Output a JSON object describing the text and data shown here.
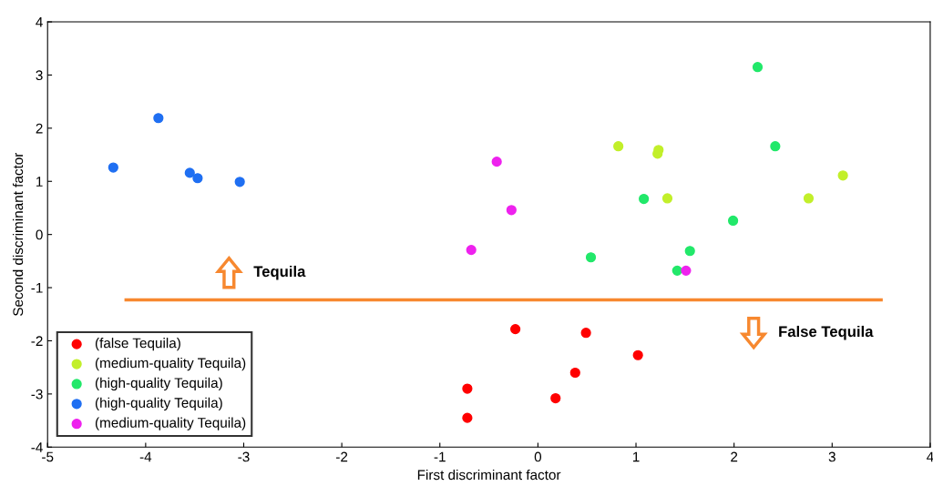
{
  "chart_data": {
    "type": "scatter",
    "xlabel": "First discriminant factor",
    "ylabel": "Second discriminant factor",
    "xlim": [
      -5,
      4
    ],
    "ylim": [
      -4,
      4
    ],
    "xticks": [
      -5,
      -4,
      -3,
      -2,
      -1,
      0,
      1,
      2,
      3,
      4
    ],
    "yticks": [
      -4,
      -3,
      -2,
      -1,
      0,
      1,
      2,
      3,
      4
    ],
    "grid": false,
    "legend": "bottom left",
    "marker": "circle",
    "series": [
      {
        "name": "(false Tequila)",
        "color": "#ff0000",
        "x": [
          -0.23,
          0.49,
          1.02,
          0.38,
          0.18,
          -0.72,
          -0.72
        ],
        "values": [
          -1.78,
          -1.85,
          -2.27,
          -2.6,
          -3.08,
          -2.9,
          -3.45
        ]
      },
      {
        "name": "(medium-quality Tequila)",
        "color": "#c2ef2a",
        "x": [
          0.82,
          1.23,
          1.22,
          1.32,
          2.76,
          3.11
        ],
        "values": [
          1.66,
          1.59,
          1.52,
          0.68,
          0.68,
          1.11
        ]
      },
      {
        "name": "(high-quality Tequila)",
        "color": "#22e86a",
        "x": [
          2.24,
          2.42,
          1.08,
          1.99,
          1.55,
          0.54,
          1.42
        ],
        "values": [
          3.15,
          1.66,
          0.67,
          0.26,
          -0.31,
          -0.43,
          -0.68
        ]
      },
      {
        "name": "(high-quality Tequila)",
        "color": "#1f6ff2",
        "x": [
          -4.33,
          -3.87,
          -3.55,
          -3.47,
          -3.04
        ],
        "values": [
          1.26,
          2.19,
          1.16,
          1.06,
          0.99
        ]
      },
      {
        "name": "(medium-quality Tequila)",
        "color": "#ee22ee",
        "x": [
          -0.42,
          -0.27,
          -0.68,
          1.51
        ],
        "values": [
          1.37,
          0.46,
          -0.29,
          -0.68
        ]
      },
      {
        "type": "line",
        "marker": "none",
        "color": "#f7882f",
        "x": [
          -4.2,
          3.5
        ],
        "values": [
          -1.23,
          -1.23
        ]
      }
    ],
    "annotations": [
      {
        "text": "Tequila",
        "x": -3.15,
        "y": -0.72
      },
      {
        "text": "False Tequila",
        "x": 2.2,
        "y": -1.85
      }
    ]
  }
}
